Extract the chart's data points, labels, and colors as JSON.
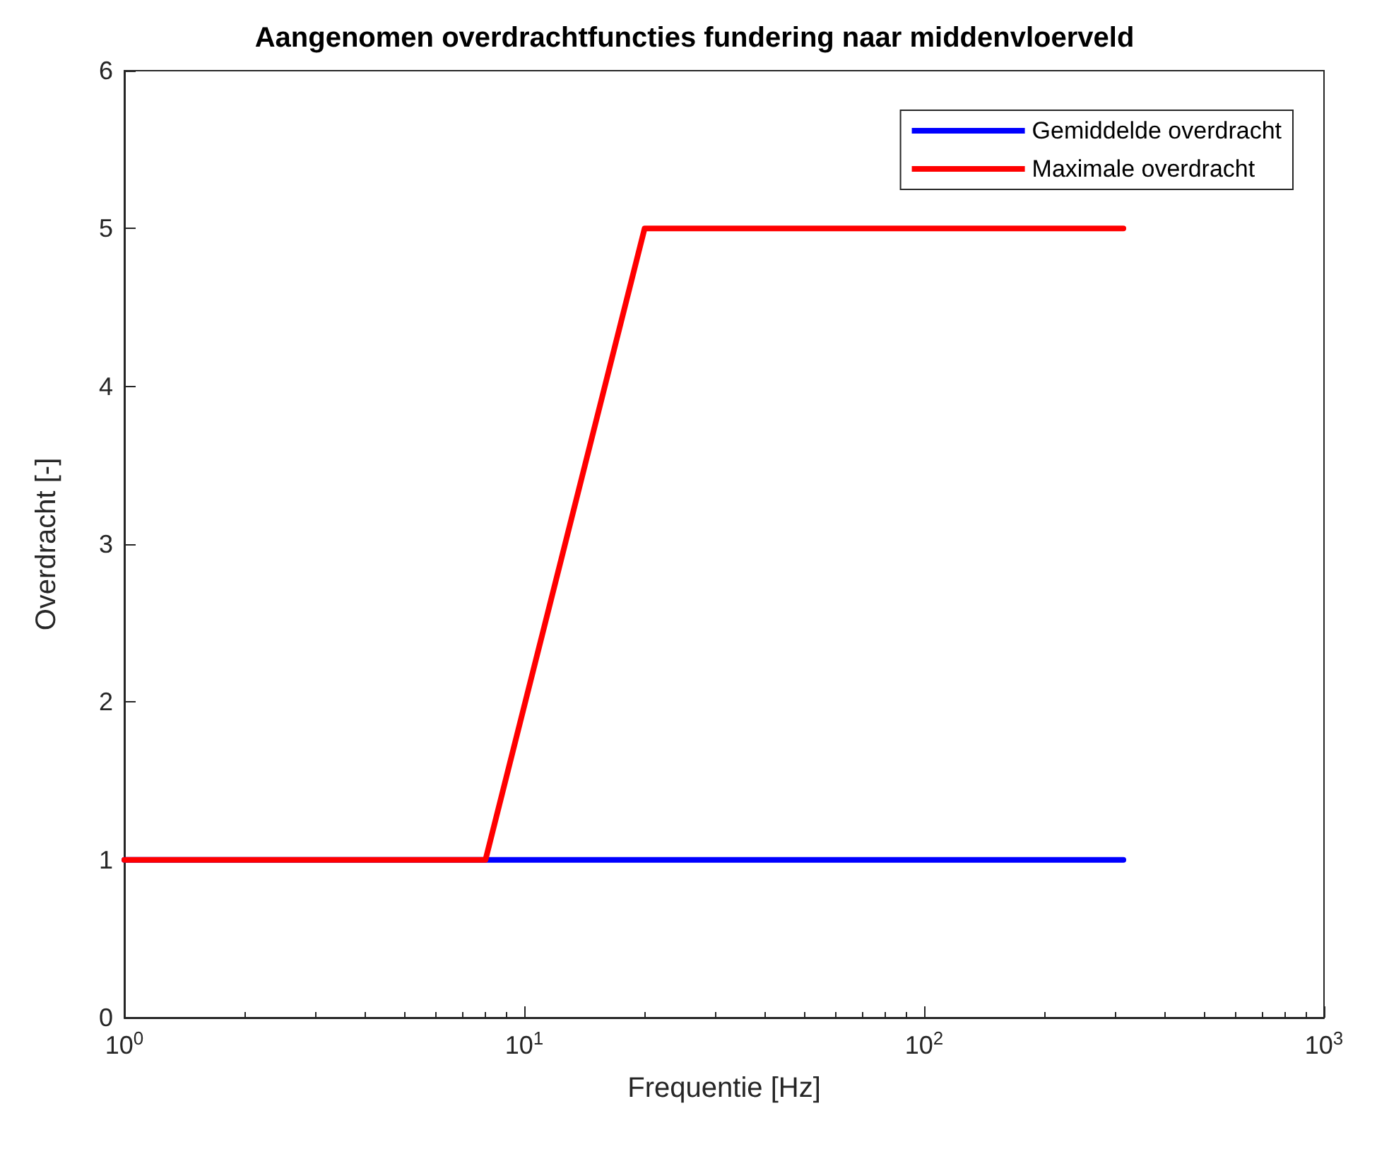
{
  "chart_data": {
    "type": "line",
    "title": "Aangenomen overdrachtfuncties fundering naar middenvloerveld",
    "xlabel": "Frequentie [Hz]",
    "ylabel": "Overdracht [-]",
    "log": "x",
    "xlim": [
      1,
      1000
    ],
    "xticks": [
      {
        "value": 1,
        "label": "10$^{0}$"
      },
      {
        "value": 10,
        "label": "10$^{1}$"
      },
      {
        "value": 100,
        "label": "10$^{2}$"
      },
      {
        "value": 1000,
        "label": "10$^{3}$"
      }
    ],
    "ylim": [
      0,
      6
    ],
    "yticks": [
      0,
      1,
      2,
      3,
      4,
      5,
      6
    ],
    "grid": false,
    "legend": "top right",
    "marker": "none",
    "line_style": "solid",
    "series": [
      {
        "name": "Gemiddelde overdracht",
        "color": "#0000ff",
        "x": [
          1,
          8,
          315
        ],
        "values": [
          1,
          1,
          1
        ]
      },
      {
        "name": "Maximale overdracht",
        "color": "#ff0000",
        "x": [
          1,
          8,
          20,
          315
        ],
        "values": [
          1,
          1,
          5,
          5
        ]
      }
    ]
  }
}
